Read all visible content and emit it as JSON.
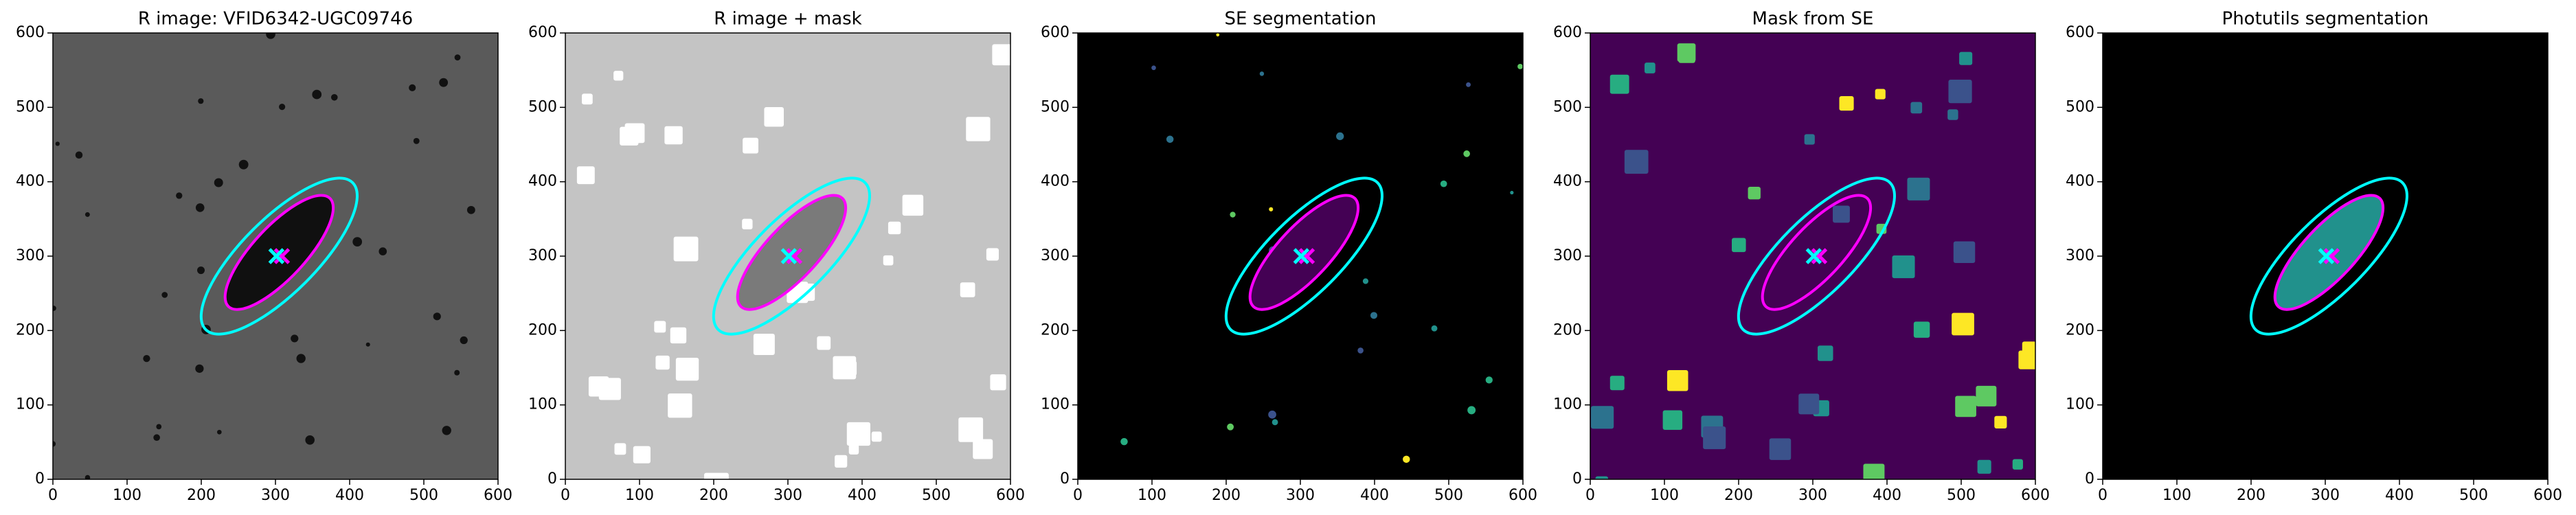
{
  "chart_data": [
    {
      "type": "image",
      "title": "R image: VFID6342-UGC09746",
      "background": "#5a5a5a",
      "xlim": [
        0,
        600
      ],
      "ylim": [
        0,
        600
      ],
      "xticks": [
        0,
        100,
        200,
        300,
        400,
        500,
        600
      ],
      "yticks": [
        0,
        100,
        200,
        300,
        400,
        500,
        600
      ],
      "ellipses": [
        {
          "cx": 305,
          "cy": 300,
          "a": 140,
          "b": 50,
          "angle": 45,
          "color": "#00ffff"
        },
        {
          "cx": 305,
          "cy": 305,
          "a": 100,
          "b": 35,
          "angle": 47,
          "color": "#ff00ff",
          "fill": "#101010"
        }
      ]
    },
    {
      "type": "image",
      "title": "R image + mask",
      "background": "#c4c4c4",
      "xlim": [
        0,
        600
      ],
      "ylim": [
        0,
        600
      ],
      "xticks": [
        0,
        100,
        200,
        300,
        400,
        500,
        600
      ],
      "yticks": [
        0,
        100,
        200,
        300,
        400,
        500,
        600
      ],
      "ellipses": [
        {
          "cx": 305,
          "cy": 300,
          "a": 140,
          "b": 50,
          "angle": 45,
          "color": "#00ffff"
        },
        {
          "cx": 305,
          "cy": 305,
          "a": 100,
          "b": 35,
          "angle": 47,
          "color": "#ff00ff",
          "fill": "#7a7a7a"
        }
      ]
    },
    {
      "type": "image",
      "title": "SE segmentation",
      "background": "#000000",
      "xlim": [
        0,
        600
      ],
      "ylim": [
        0,
        600
      ],
      "xticks": [
        0,
        100,
        200,
        300,
        400,
        500,
        600
      ],
      "yticks": [
        0,
        100,
        200,
        300,
        400,
        500,
        600
      ],
      "ellipses": [
        {
          "cx": 305,
          "cy": 300,
          "a": 140,
          "b": 50,
          "angle": 45,
          "color": "#00ffff"
        },
        {
          "cx": 305,
          "cy": 305,
          "a": 100,
          "b": 35,
          "angle": 47,
          "color": "#ff00ff",
          "fill": "#440154"
        }
      ]
    },
    {
      "type": "image",
      "title": "Mask from SE",
      "background": "#440154",
      "xlim": [
        0,
        600
      ],
      "ylim": [
        0,
        600
      ],
      "xticks": [
        0,
        100,
        200,
        300,
        400,
        500,
        600
      ],
      "yticks": [
        0,
        100,
        200,
        300,
        400,
        500,
        600
      ],
      "ellipses": [
        {
          "cx": 305,
          "cy": 300,
          "a": 140,
          "b": 50,
          "angle": 45,
          "color": "#00ffff"
        },
        {
          "cx": 305,
          "cy": 305,
          "a": 100,
          "b": 35,
          "angle": 47,
          "color": "#ff00ff"
        }
      ]
    },
    {
      "type": "image",
      "title": "Photutils segmentation",
      "background": "#000000",
      "xlim": [
        0,
        600
      ],
      "ylim": [
        0,
        600
      ],
      "xticks": [
        0,
        100,
        200,
        300,
        400,
        500,
        600
      ],
      "yticks": [
        0,
        100,
        200,
        300,
        400,
        500,
        600
      ],
      "ellipses": [
        {
          "cx": 305,
          "cy": 300,
          "a": 140,
          "b": 50,
          "angle": 45,
          "color": "#00ffff"
        },
        {
          "cx": 305,
          "cy": 305,
          "a": 100,
          "b": 35,
          "angle": 47,
          "color": "#ff00ff",
          "fill": "#21918c"
        }
      ]
    }
  ]
}
